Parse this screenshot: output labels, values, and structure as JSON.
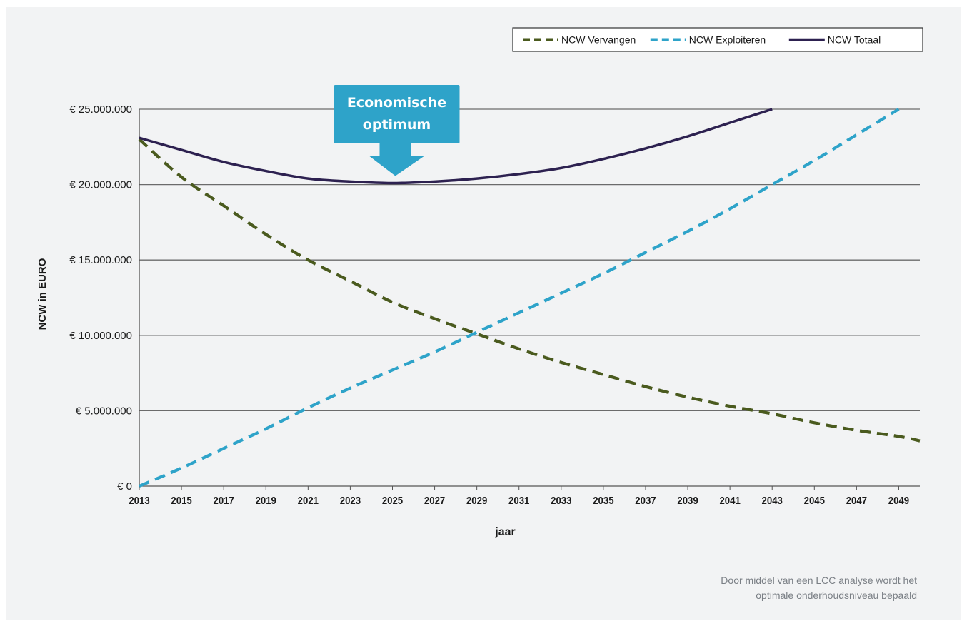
{
  "chart_data": {
    "type": "line",
    "xlabel": "jaar",
    "ylabel": "NCW in EURO",
    "xlim": [
      2013,
      2050
    ],
    "ylim": [
      0,
      25000000
    ],
    "x_ticks": [
      "2013",
      "2015",
      "2017",
      "2019",
      "2021",
      "2023",
      "2025",
      "2027",
      "2029",
      "2031",
      "2033",
      "2035",
      "2037",
      "2039",
      "2041",
      "2043",
      "2045",
      "2047",
      "2049"
    ],
    "y_ticks": [
      {
        "value": 0,
        "label": "€ 0"
      },
      {
        "value": 5000000,
        "label": "€ 5.000.000"
      },
      {
        "value": 10000000,
        "label": "€ 10.000.000"
      },
      {
        "value": 15000000,
        "label": "€ 15.000.000"
      },
      {
        "value": 20000000,
        "label": "€ 20.000.000"
      },
      {
        "value": 25000000,
        "label": "€ 25.000.000"
      }
    ],
    "grid": "horizontal",
    "legend_position": "top-right",
    "series": [
      {
        "name": "NCW Vervangen",
        "color": "#4a5a1e",
        "style": "dashed",
        "x": [
          2013,
          2015,
          2017,
          2019,
          2021,
          2023,
          2025,
          2027,
          2029,
          2031,
          2033,
          2035,
          2037,
          2039,
          2041,
          2043,
          2045,
          2047,
          2049,
          2050
        ],
        "y": [
          23000000,
          20500000,
          18600000,
          16700000,
          15000000,
          13600000,
          12200000,
          11100000,
          10100000,
          9100000,
          8200000,
          7400000,
          6600000,
          5900000,
          5300000,
          4800000,
          4200000,
          3700000,
          3300000,
          3000000
        ]
      },
      {
        "name": "NCW Exploiteren",
        "color": "#2ea3c9",
        "style": "dashed",
        "x": [
          2013,
          2015,
          2017,
          2019,
          2021,
          2023,
          2025,
          2027,
          2029,
          2031,
          2033,
          2035,
          2037,
          2039,
          2041,
          2043,
          2045,
          2047,
          2049
        ],
        "y": [
          0,
          1200000,
          2500000,
          3800000,
          5200000,
          6500000,
          7700000,
          8900000,
          10200000,
          11500000,
          12800000,
          14100000,
          15500000,
          16900000,
          18400000,
          20000000,
          21600000,
          23300000,
          25000000
        ]
      },
      {
        "name": "NCW Totaal",
        "color": "#2d2150",
        "style": "solid",
        "x": [
          2013,
          2015,
          2017,
          2019,
          2021,
          2023,
          2025,
          2027,
          2029,
          2031,
          2033,
          2035,
          2037,
          2039,
          2041,
          2043
        ],
        "y": [
          23100000,
          22300000,
          21500000,
          20900000,
          20400000,
          20200000,
          20100000,
          20200000,
          20400000,
          20700000,
          21100000,
          21700000,
          22400000,
          23200000,
          24100000,
          25000000
        ]
      }
    ],
    "annotation": {
      "text_line1": "Economische",
      "text_line2": "optimum",
      "x": 2025,
      "y": 20100000,
      "color": "#2ea3c9"
    }
  },
  "caption": {
    "line1": "Door middel van een LCC analyse wordt het",
    "line2": "optimale onderhoudsniveau bepaald"
  }
}
